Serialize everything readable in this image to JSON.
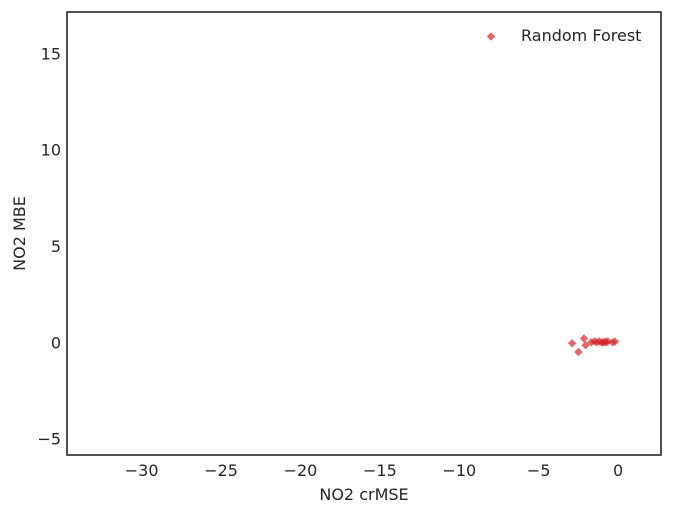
{
  "chart_data": {
    "type": "scatter",
    "xlabel": "NO2 crMSE",
    "ylabel": "NO2 MBE",
    "xlim": [
      -34.7,
      2.7
    ],
    "ylim": [
      -5.85,
      17.15
    ],
    "xticks": [
      -30,
      -25,
      -20,
      -15,
      -10,
      -5,
      0
    ],
    "xtick_labels": [
      "−30",
      "−25",
      "−20",
      "−15",
      "−10",
      "−5",
      "0"
    ],
    "yticks": [
      -5,
      0,
      5,
      10,
      15
    ],
    "ytick_labels": [
      "−5",
      "0",
      "5",
      "10",
      "15"
    ],
    "grid": false,
    "legend": {
      "position": "top-right",
      "entries": [
        "Random Forest"
      ]
    },
    "series": [
      {
        "name": "Random Forest",
        "color": "#d62728",
        "marker": "diamond",
        "points": [
          {
            "x": -2.9,
            "y": -0.05
          },
          {
            "x": -2.5,
            "y": -0.5
          },
          {
            "x": -2.15,
            "y": 0.2
          },
          {
            "x": -2.05,
            "y": -0.15
          },
          {
            "x": -1.7,
            "y": 0.0
          },
          {
            "x": -1.5,
            "y": 0.05
          },
          {
            "x": -1.35,
            "y": 0.0
          },
          {
            "x": -1.2,
            "y": 0.05
          },
          {
            "x": -1.05,
            "y": 0.0
          },
          {
            "x": -0.95,
            "y": -0.02
          },
          {
            "x": -0.85,
            "y": 0.03
          },
          {
            "x": -0.75,
            "y": 0.0
          },
          {
            "x": -0.65,
            "y": 0.05
          },
          {
            "x": -0.35,
            "y": 0.0
          },
          {
            "x": -0.2,
            "y": 0.04
          }
        ]
      }
    ]
  }
}
